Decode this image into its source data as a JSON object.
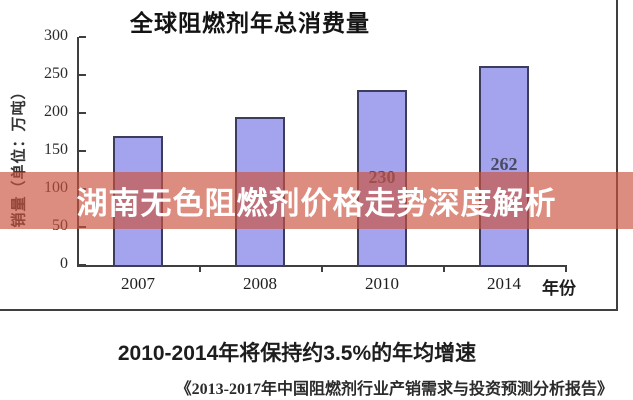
{
  "banner": {
    "text": "湖南无色阻燃剂价格走势深度解析",
    "bg_color": "rgba(204,82,61,0.66)",
    "text_color": "#ffffff"
  },
  "chart_data": {
    "type": "bar",
    "title": "全球阻燃剂年总消费量",
    "categories": [
      "2007",
      "2008",
      "2010",
      "2014"
    ],
    "values": [
      170,
      195,
      230,
      262
    ],
    "value_labels": [
      "",
      "",
      "230",
      "262"
    ],
    "xlabel": "年份",
    "ylabel": "销量（单位：万吨）",
    "ylim": [
      0,
      300
    ],
    "yticks": [
      300,
      250,
      200,
      150,
      100,
      50,
      0
    ],
    "grid": "off",
    "legend": "none",
    "bar_color": "#a4a4ee",
    "bar_border_color": "#3c3c5c"
  },
  "footer": {
    "line1": "2010-2014年将保持约3.5%的年均增速",
    "line2": "《2013-2017年中国阻燃剂行业产销需求与投资预测分析报告》"
  }
}
